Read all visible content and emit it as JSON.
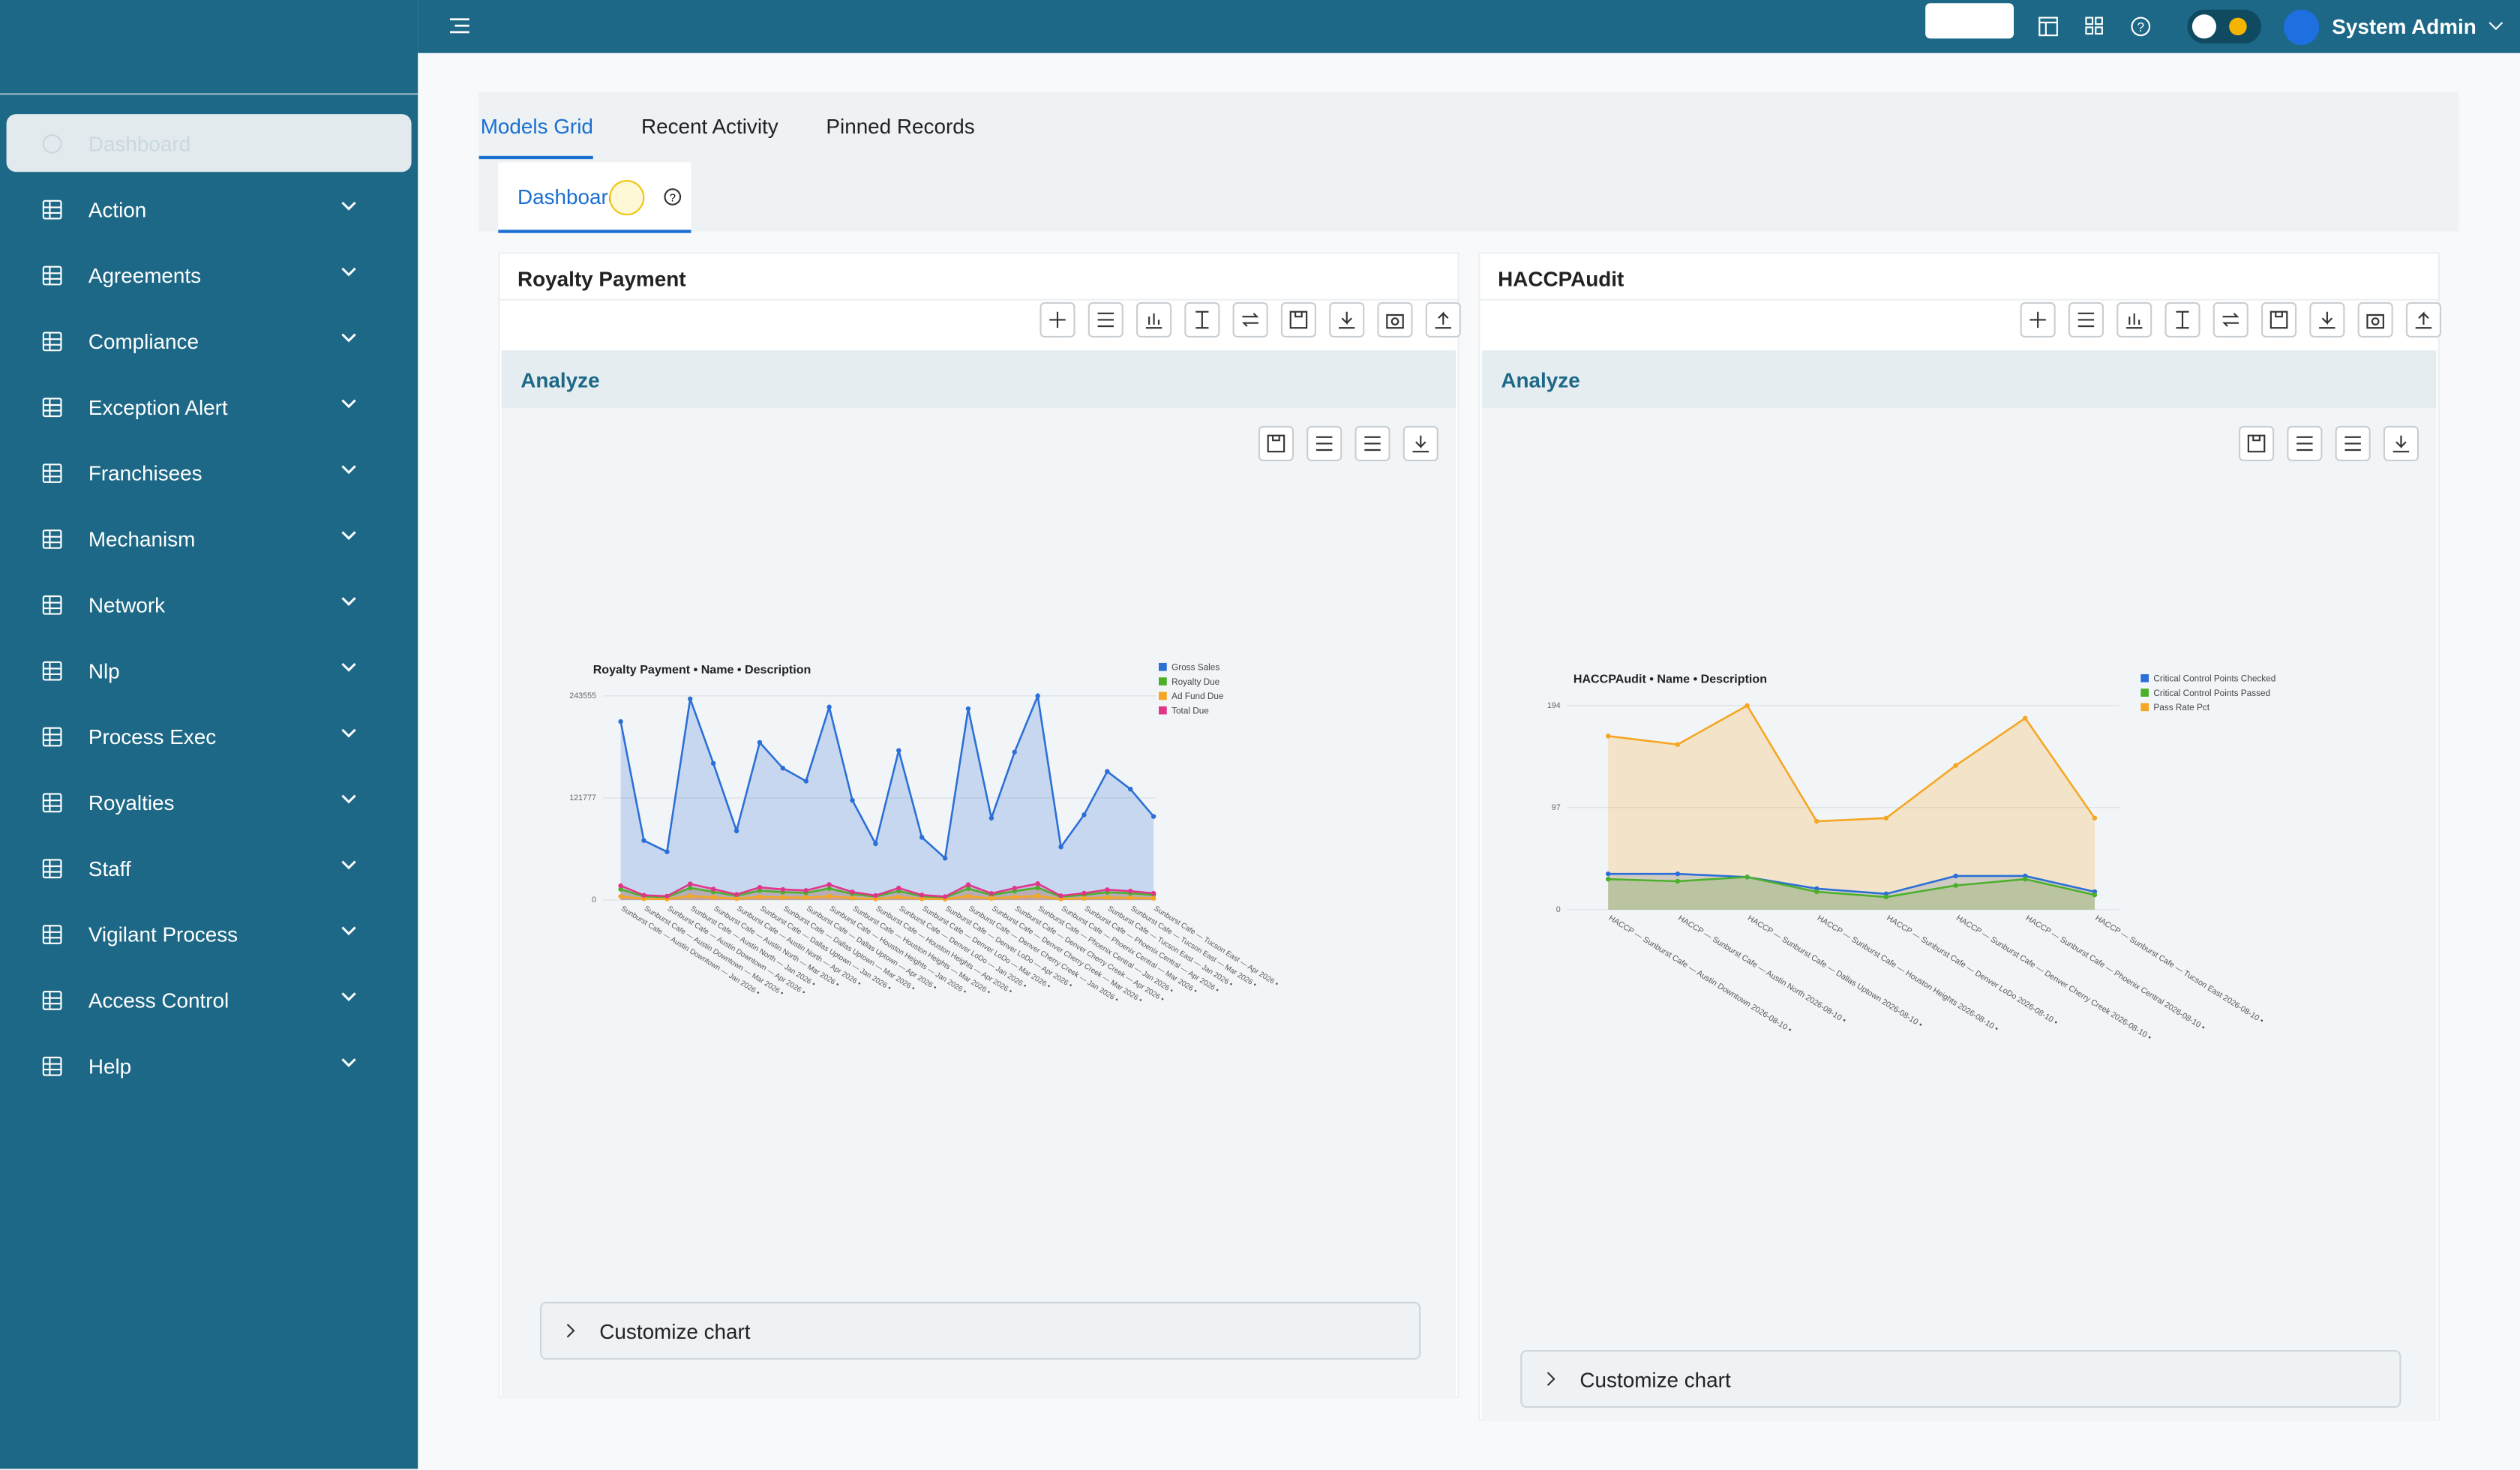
{
  "topbar": {
    "user": "System Admin"
  },
  "sidebar": {
    "items": [
      "Dashboard",
      "Action",
      "Agreements",
      "Compliance",
      "Exception Alert",
      "Franchisees",
      "Mechanism",
      "Network",
      "Nlp",
      "Process Exec",
      "Royalties",
      "Staff",
      "Vigilant Process",
      "Access Control",
      "Help"
    ]
  },
  "tabs": [
    "Models Grid",
    "Recent Activity",
    "Pinned Records"
  ],
  "subtab": "Dashboard",
  "panels": [
    {
      "title": "Royalty Payment",
      "section": "Analyze",
      "customize": "Customize chart"
    },
    {
      "title": "HACCPAudit",
      "section": "Analyze",
      "customize": "Customize chart"
    }
  ],
  "chart_data": [
    {
      "type": "area",
      "title": "Royalty Payment • Name • Description",
      "categories": [
        "Sunburst Cafe — Austin Downtown — Jan 2026 •",
        "Sunburst Cafe — Austin Downtown — Mar 2026 •",
        "Sunburst Cafe — Austin Downtown — Apr 2026 •",
        "Sunburst Cafe — Austin North — Jan 2026 •",
        "Sunburst Cafe — Austin North — Mar 2026 •",
        "Sunburst Cafe — Austin North — Apr 2026 •",
        "Sunburst Cafe — Dallas Uptown — Jan 2026 •",
        "Sunburst Cafe — Dallas Uptown — Mar 2026 •",
        "Sunburst Cafe — Dallas Uptown — Apr 2026 •",
        "Sunburst Cafe — Houston Heights — Jan 2026 •",
        "Sunburst Cafe — Houston Heights — Mar 2026 •",
        "Sunburst Cafe — Houston Heights — Apr 2026 •",
        "Sunburst Cafe — Denver LoDo — Jan 2026 •",
        "Sunburst Cafe — Denver LoDo — Mar 2026 •",
        "Sunburst Cafe — Denver LoDo — Apr 2026 •",
        "Sunburst Cafe — Denver Cherry Creek — Jan 2026 •",
        "Sunburst Cafe — Denver Cherry Creek — Mar 2026 •",
        "Sunburst Cafe — Denver Cherry Creek — Apr 2026 •",
        "Sunburst Cafe — Phoenix Central — Jan 2026 •",
        "Sunburst Cafe — Phoenix Central — Mar 2026 •",
        "Sunburst Cafe — Phoenix Central — Apr 2026 •",
        "Sunburst Cafe — Tucson East — Jan 2026 •",
        "Sunburst Cafe — Tucson East — Mar 2026 •",
        "Sunburst Cafe — Tucson East — Apr 2026 •"
      ],
      "series": [
        {
          "name": "Gross Sales",
          "color": "#2b6fd6",
          "values": [
            212900,
            70970,
            57540,
            240000,
            163000,
            82470,
            188000,
            157300,
            141900,
            230200,
            118900,
            67100,
            178400,
            74800,
            49900,
            228200,
            97800,
            176500,
            243555,
            63300,
            101700,
            153400,
            132300,
            99700
          ]
        },
        {
          "name": "Royalty Due",
          "color": "#4caf2a",
          "values": [
            12774,
            4258,
            3452,
            14400,
            9780,
            4948,
            11280,
            9438,
            8514,
            13812,
            7134,
            4026,
            10704,
            4488,
            2994,
            13692,
            5868,
            10590,
            14613,
            3798,
            6102,
            9204,
            7938,
            5982
          ]
        },
        {
          "name": "Ad Fund Due",
          "color": "#f5a623",
          "values": [
            4258,
            1419,
            1151,
            4800,
            3260,
            1649,
            3760,
            3146,
            2838,
            4604,
            2378,
            1342,
            3568,
            1496,
            998,
            4564,
            1956,
            3530,
            4871,
            1266,
            2034,
            3068,
            2646,
            1994
          ]
        },
        {
          "name": "Total Due",
          "color": "#e0358a",
          "values": [
            17032,
            5677,
            4603,
            19200,
            13040,
            6597,
            15040,
            12584,
            11352,
            18416,
            9512,
            5368,
            14272,
            5984,
            3992,
            18256,
            7824,
            14120,
            19484,
            5064,
            8136,
            12272,
            10584,
            7976
          ]
        }
      ],
      "ylim": [
        0,
        243555
      ],
      "yticks": [
        0,
        121777,
        243555
      ],
      "grid": true,
      "legend": "top-right"
    },
    {
      "type": "area",
      "title": "HACCPAudit • Name • Description",
      "categories": [
        "HACCP — Sunburst Cafe — Austin Downtown 2026-08-10 •",
        "HACCP — Sunburst Cafe — Austin North 2026-08-10 •",
        "HACCP — Sunburst Cafe — Dallas Uptown 2026-08-10 •",
        "HACCP — Sunburst Cafe — Houston Heights 2026-08-10 •",
        "HACCP — Sunburst Cafe — Denver LoDo 2026-08-10 •",
        "HACCP — Sunburst Cafe — Denver Cherry Creek 2026-08-10 •",
        "HACCP — Sunburst Cafe — Phoenix Central 2026-08-10 •",
        "HACCP — Sunburst Cafe — Tucson East 2026-08-10 •"
      ],
      "series": [
        {
          "name": "Critical Control Points Checked",
          "color": "#2b6fd6",
          "values": [
            34,
            34,
            31,
            20,
            15,
            32,
            32,
            17
          ]
        },
        {
          "name": "Critical Control Points Passed",
          "color": "#4caf2a",
          "values": [
            29,
            27,
            31,
            17,
            12,
            23,
            29,
            14
          ]
        },
        {
          "name": "Pass Rate Pct",
          "color": "#f5a623",
          "values": [
            165,
            157,
            194,
            84,
            87,
            137,
            182,
            87
          ]
        }
      ],
      "ylim": [
        0,
        194
      ],
      "yticks": [
        0,
        97,
        194
      ],
      "grid": true,
      "legend": "top-right"
    }
  ]
}
